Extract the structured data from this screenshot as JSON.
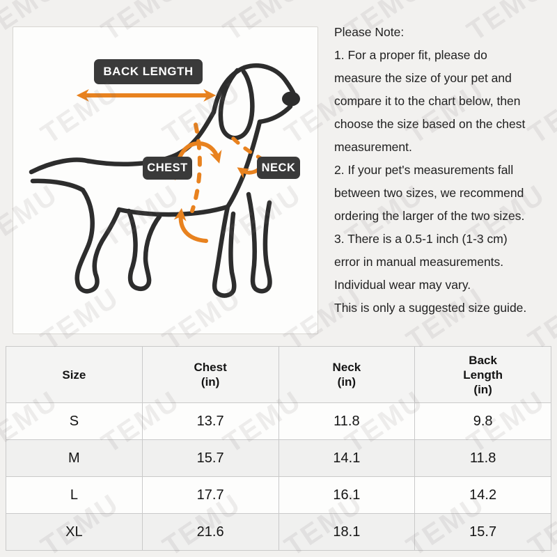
{
  "watermark": {
    "text": "TEMU"
  },
  "diagram": {
    "back_length_label": "BACK LENGTH",
    "chest_label": "CHEST",
    "neck_label": "NECK",
    "accent_color": "#E8821F",
    "label_bg_color": "#3A3A3A",
    "dog_line_color": "#2D2D2D"
  },
  "notes": {
    "title": "Please Note:",
    "body": "1. For a proper fit, please do\nmeasure the size of your pet and\ncompare it to the chart below, then\nchoose the size based on the chest\nmeasurement.\n2. If your pet's measurements fall\nbetween two sizes, we recommend\nordering the larger of the two sizes.\n3. There is a 0.5-1 inch (1-3 cm)\nerror in manual measurements.\nIndividual wear may vary.\nThis is only a suggested size guide."
  },
  "size_table": {
    "columns": [
      "Size",
      "Chest\n(in)",
      "Neck\n(in)",
      "Back\nLength\n(in)"
    ],
    "rows": [
      [
        "S",
        "13.7",
        "11.8",
        "9.8"
      ],
      [
        "M",
        "15.7",
        "14.1",
        "11.8"
      ],
      [
        "L",
        "17.7",
        "16.1",
        "14.2"
      ],
      [
        "XL",
        "21.6",
        "18.1",
        "15.7"
      ]
    ]
  }
}
